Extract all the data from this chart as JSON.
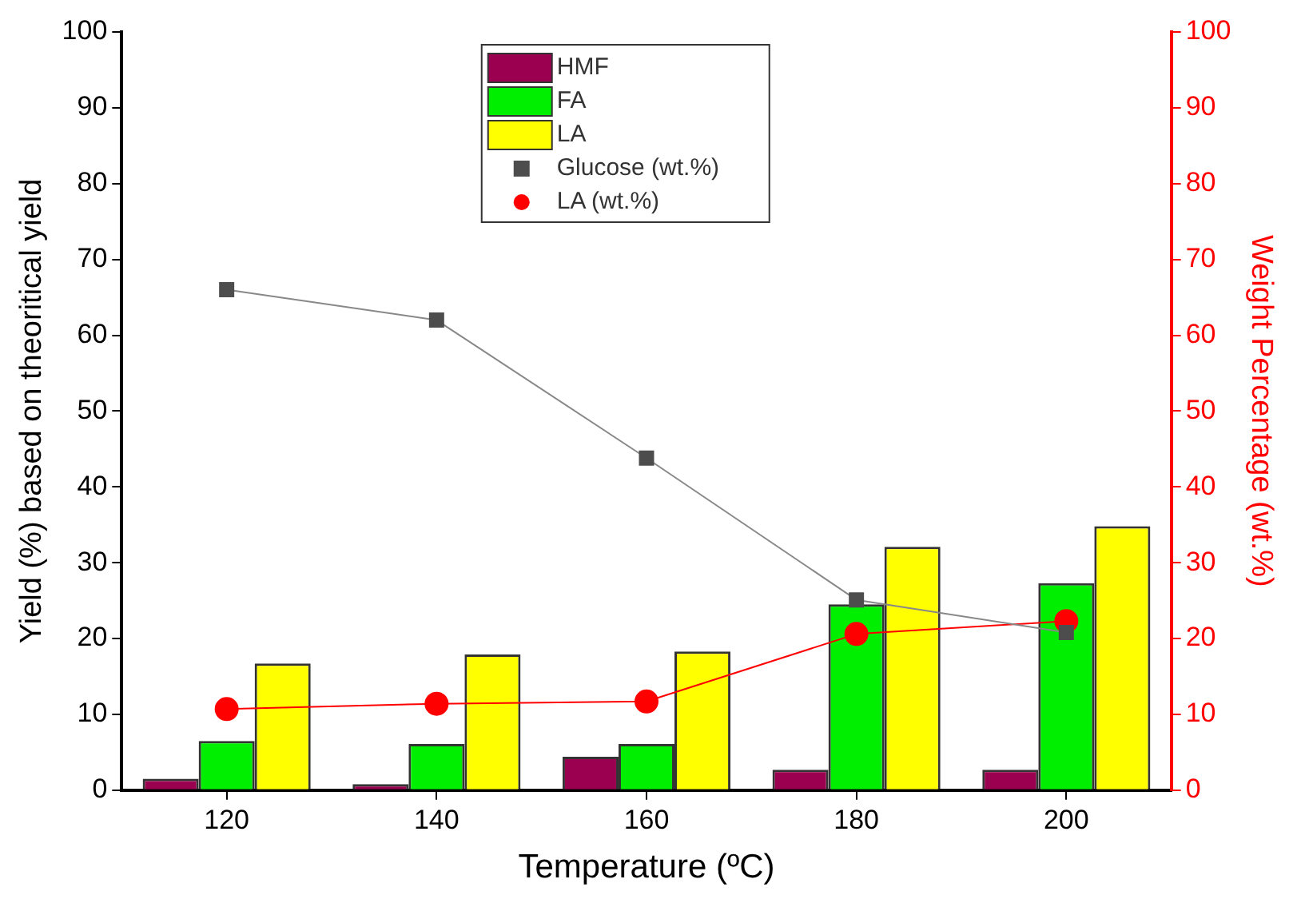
{
  "chart_data": {
    "type": "bar",
    "xlabel": "Temperature (ºC)",
    "ylabel": "Yield (%) based on theoritical yield",
    "y2label": "Weight Percentage (wt.%)",
    "categories": [
      "120",
      "140",
      "160",
      "180",
      "200"
    ],
    "series": [
      {
        "name": "HMF",
        "color": "#9b0050",
        "values": [
          1.5,
          0.8,
          4.4,
          2.7,
          2.7
        ]
      },
      {
        "name": "FA",
        "color": "#00ee00",
        "values": [
          6.5,
          6.1,
          6.1,
          24.5,
          27.3
        ]
      },
      {
        "name": "LA",
        "color": "#ffff00",
        "values": [
          16.7,
          17.9,
          18.3,
          32.1,
          34.8
        ]
      },
      {
        "name": "Glucose (wt.%)",
        "type": "line",
        "axis": "y2",
        "marker": "square",
        "color": "#4d4d4d",
        "values": [
          66,
          62,
          43.8,
          25.1,
          20.8
        ]
      },
      {
        "name": "LA (wt.%)",
        "type": "line",
        "axis": "y2",
        "marker": "circle",
        "color": "#ff0000",
        "values": [
          10.7,
          11.4,
          11.7,
          20.6,
          22.3
        ]
      }
    ],
    "ylim": [
      0,
      100
    ],
    "yticks": [
      0,
      10,
      20,
      30,
      40,
      50,
      60,
      70,
      80,
      90,
      100
    ],
    "y2lim": [
      0,
      100
    ],
    "y2ticks": [
      0,
      10,
      20,
      30,
      40,
      50,
      60,
      70,
      80,
      90,
      100
    ],
    "grid": false,
    "legend": "top"
  }
}
